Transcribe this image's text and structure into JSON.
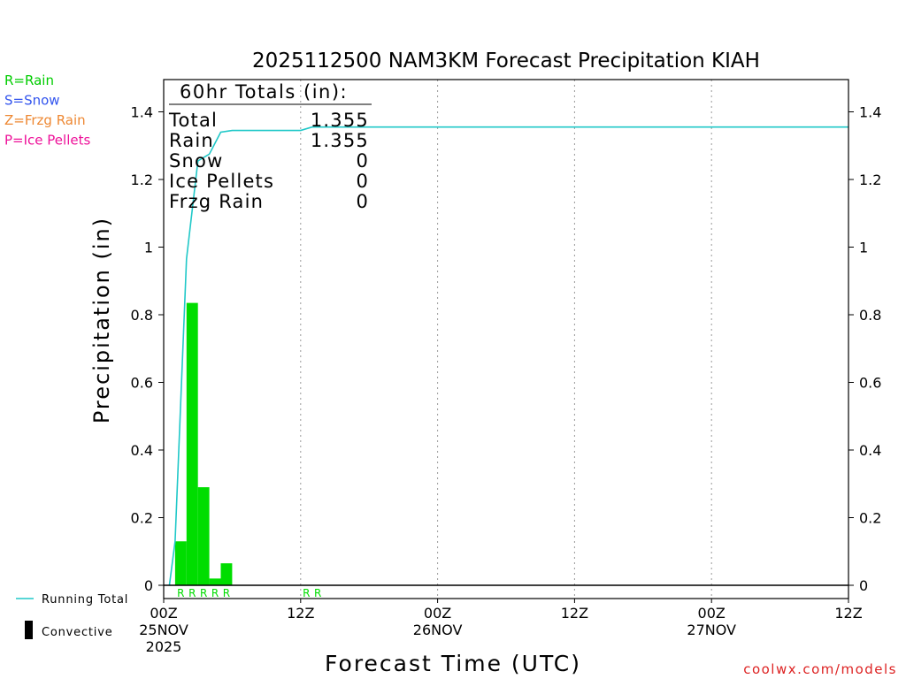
{
  "chart_data": {
    "type": "bar",
    "title": "2025112500 NAM3KM Forecast Precipitation KIAH",
    "xlabel": "Forecast Time (UTC)",
    "ylabel": "Precipitation (in)",
    "x_unit": "forecast hour",
    "xlim": [
      0,
      60
    ],
    "ylim": [
      0,
      1.5
    ],
    "yticks": [
      "0",
      "0.2",
      "0.4",
      "0.6",
      "0.8",
      "1",
      "1.2",
      "1.4"
    ],
    "xticks": [
      {
        "hour": 0,
        "labels": [
          "00Z",
          "25NOV",
          "2025"
        ]
      },
      {
        "hour": 12,
        "labels": [
          "12Z"
        ]
      },
      {
        "hour": 24,
        "labels": [
          "00Z",
          "26NOV"
        ]
      },
      {
        "hour": 36,
        "labels": [
          "12Z"
        ]
      },
      {
        "hour": 48,
        "labels": [
          "00Z",
          "27NOV"
        ]
      },
      {
        "hour": 60,
        "labels": [
          "12Z"
        ]
      }
    ],
    "grid": "vertical dotted",
    "series": [
      {
        "name": "Rain",
        "kind": "bar",
        "color": "#00dd00",
        "x": [
          1,
          2,
          3,
          4,
          5,
          6
        ],
        "values": [
          0.13,
          0.835,
          0.29,
          0.02,
          0.065,
          0
        ]
      },
      {
        "name": "Running Total",
        "kind": "line",
        "color": "#20c8c8",
        "x": [
          0.5,
          1,
          2,
          3,
          4,
          5,
          6,
          12,
          13,
          60
        ],
        "values": [
          0,
          0.13,
          0.965,
          1.255,
          1.275,
          1.34,
          1.345,
          1.345,
          1.355,
          1.355
        ]
      }
    ],
    "precip_type_markers": {
      "color": "#00dd00",
      "items": [
        {
          "hour": 1.5,
          "text": "R"
        },
        {
          "hour": 2.5,
          "text": "R"
        },
        {
          "hour": 3.5,
          "text": "R"
        },
        {
          "hour": 4.5,
          "text": "R"
        },
        {
          "hour": 5.5,
          "text": "R"
        },
        {
          "hour": 12.5,
          "text": "R"
        },
        {
          "hour": 13.5,
          "text": "R"
        }
      ]
    },
    "totals_box": {
      "heading": "60hr Totals (in):",
      "rows": [
        {
          "label": "Total",
          "value": "1.355"
        },
        {
          "label": "Rain",
          "value": "1.355"
        },
        {
          "label": "Snow",
          "value": "0"
        },
        {
          "label": "Ice Pellets",
          "value": "0"
        },
        {
          "label": "Frzg Rain",
          "value": "0"
        }
      ]
    },
    "type_legend": [
      {
        "text": "R=Rain",
        "color": "#00cc00"
      },
      {
        "text": "S=Snow",
        "color": "#3355ee"
      },
      {
        "text": "Z=Frzg Rain",
        "color": "#ee8833"
      },
      {
        "text": "P=Ice Pellets",
        "color": "#ee1199"
      }
    ],
    "bottom_legend": [
      {
        "text": "Running Total",
        "kind": "line",
        "color": "#20c8c8"
      },
      {
        "text": "Convective",
        "kind": "bar",
        "color": "#000000"
      }
    ],
    "credit": "coolwx.com/models"
  }
}
